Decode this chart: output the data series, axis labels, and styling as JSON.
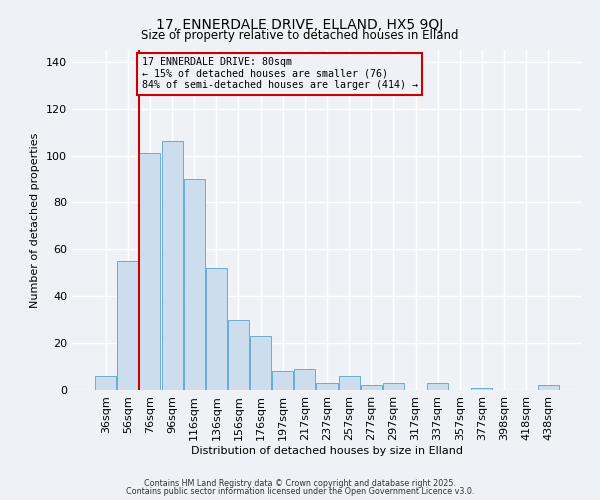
{
  "title": "17, ENNERDALE DRIVE, ELLAND, HX5 9QJ",
  "subtitle": "Size of property relative to detached houses in Elland",
  "xlabel": "Distribution of detached houses by size in Elland",
  "ylabel": "Number of detached properties",
  "bar_labels": [
    "36sqm",
    "56sqm",
    "76sqm",
    "96sqm",
    "116sqm",
    "136sqm",
    "156sqm",
    "176sqm",
    "197sqm",
    "217sqm",
    "237sqm",
    "257sqm",
    "277sqm",
    "297sqm",
    "317sqm",
    "337sqm",
    "357sqm",
    "377sqm",
    "398sqm",
    "418sqm",
    "438sqm"
  ],
  "bar_values": [
    6,
    55,
    101,
    106,
    90,
    52,
    30,
    23,
    8,
    9,
    3,
    6,
    2,
    3,
    0,
    3,
    0,
    1,
    0,
    0,
    2
  ],
  "bar_color": "#ccdded",
  "bar_edge_color": "#6aacd0",
  "annotation_title": "17 ENNERDALE DRIVE: 80sqm",
  "annotation_line1": "← 15% of detached houses are smaller (76)",
  "annotation_line2": "84% of semi-detached houses are larger (414) →",
  "vline_color": "#cc0000",
  "ylim": [
    0,
    145
  ],
  "yticks": [
    0,
    20,
    40,
    60,
    80,
    100,
    120,
    140
  ],
  "background_color": "#eef2f7",
  "grid_color": "#ffffff",
  "footnote1": "Contains HM Land Registry data © Crown copyright and database right 2025.",
  "footnote2": "Contains public sector information licensed under the Open Government Licence v3.0.",
  "vline_index": 1.5
}
